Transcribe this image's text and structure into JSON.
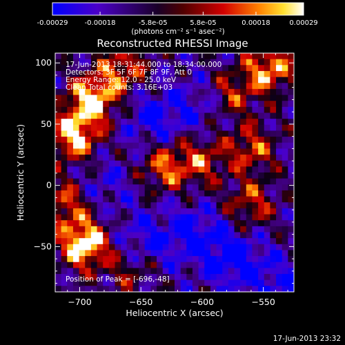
{
  "colorbar": {
    "ticks": [
      "-0.00029",
      "-0.00018",
      "-5.8e-05",
      "5.8e-05",
      "0.00018",
      "0.00029"
    ],
    "tick_values": [
      -0.00029,
      -0.00018,
      -5.8e-05,
      5.8e-05,
      0.00018,
      0.00029
    ],
    "range": [
      -0.00029,
      0.00029
    ],
    "unit_label": "(photons cm⁻² s⁻¹ asec⁻²)",
    "colormap": [
      "#0000ff",
      "#4b00c8",
      "#000000",
      "#d20000",
      "#ff7800",
      "#ffe030",
      "#ffffff"
    ]
  },
  "chart_data": {
    "type": "heatmap",
    "title": "Reconstructed RHESSI Image",
    "xlabel": "Heliocentric X (arcsec)",
    "ylabel": "Heliocentric Y (arcsec)",
    "xlim": [
      -720,
      -525
    ],
    "ylim": [
      -87,
      108
    ],
    "x_ticks": [
      -700,
      -650,
      -600,
      -550
    ],
    "y_ticks": [
      -50,
      0,
      50,
      100
    ],
    "annotations": [
      "17-Jun-2013 18:31:44.000 to 18:34:00.000",
      "Detectors: 3F 5F 6F 7F 8F 9F, Att 0",
      "Energy Range: 12.0 - 25.0 keV",
      "Clean    Total counts: 3.16E+03"
    ],
    "peak_label": "Position of Peak = [-696,-48]",
    "peak": [
      -696,
      -48
    ],
    "hotspots": [
      {
        "x": -690,
        "y": 70,
        "intensity": 0.9
      },
      {
        "x": -705,
        "y": 40,
        "intensity": 0.85
      },
      {
        "x": -665,
        "y": 95,
        "intensity": 0.6
      },
      {
        "x": -696,
        "y": -48,
        "intensity": 1.0
      },
      {
        "x": -712,
        "y": -15,
        "intensity": 0.55
      },
      {
        "x": -630,
        "y": 15,
        "intensity": 0.6
      },
      {
        "x": -600,
        "y": 20,
        "intensity": 0.5
      },
      {
        "x": -560,
        "y": 30,
        "intensity": 0.55
      },
      {
        "x": -545,
        "y": 95,
        "intensity": 0.75
      },
      {
        "x": -575,
        "y": 75,
        "intensity": 0.45
      },
      {
        "x": -560,
        "y": -15,
        "intensity": 0.5
      },
      {
        "x": -660,
        "y": -70,
        "intensity": 0.35
      }
    ],
    "coldspots": [
      {
        "x": -640,
        "y": 55,
        "intensity": 0.6
      },
      {
        "x": -610,
        "y": -40,
        "intensity": 0.7
      },
      {
        "x": -575,
        "y": -60,
        "intensity": 0.8
      },
      {
        "x": -650,
        "y": -45,
        "intensity": 0.5
      },
      {
        "x": -605,
        "y": 65,
        "intensity": 0.4
      },
      {
        "x": -680,
        "y": 0,
        "intensity": 0.35
      },
      {
        "x": -540,
        "y": -80,
        "intensity": 0.5
      }
    ]
  },
  "timestamp": "17-Jun-2013 23:32"
}
